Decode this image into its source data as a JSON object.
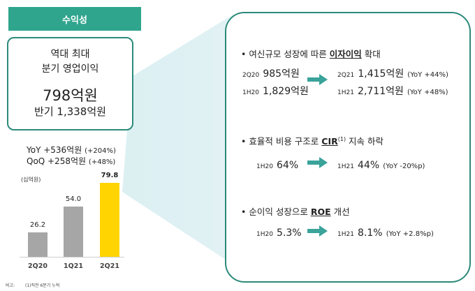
{
  "header": {
    "title": "수익성"
  },
  "kpi": {
    "line1": "역대 최대",
    "line2": "분기 영업이익",
    "value": "798억원",
    "half": "반기 1,338억원"
  },
  "growth": {
    "yoy": "YoY +536억원",
    "yoy_pct": "(+204%)",
    "qoq": "QoQ +258억원",
    "qoq_pct": "(+48%)"
  },
  "chart_data": {
    "type": "bar",
    "unit_label": "(십억원)",
    "categories": [
      "2Q20",
      "1Q21",
      "2Q21"
    ],
    "values": [
      26.2,
      54.0,
      79.8
    ],
    "value_labels": [
      "26.2",
      "54.0",
      "79.8"
    ],
    "colors": [
      "#a6a6a6",
      "#a6a6a6",
      "#ffd400"
    ],
    "ylim": [
      0,
      85
    ]
  },
  "footnote": {
    "label": "비고:",
    "text": "(1)직전 6분기 누적"
  },
  "bullets": [
    {
      "pre": "여신규모 성장에 따른 ",
      "key": "이자이익",
      "post": " 확대",
      "sup": "",
      "rows": [
        {
          "from_period": "2Q20",
          "from_value": "985억원",
          "to_period": "2Q21",
          "to_value": "1,415억원",
          "note": "(YoY +44%)"
        },
        {
          "from_period": "1H20",
          "from_value": "1,829억원",
          "to_period": "1H21",
          "to_value": "2,711억원",
          "note": "(YoY +48%)"
        }
      ]
    },
    {
      "pre": "효율적 비용 구조로 ",
      "key": "CIR",
      "sup": "(1)",
      "post": " 지속 하락",
      "rows": [
        {
          "from_period": "1H20",
          "from_value": "64%",
          "to_period": "1H21",
          "to_value": "44%",
          "note": "(YoY -20%p)"
        }
      ]
    },
    {
      "pre": "순이익 성장으로 ",
      "key": "ROE",
      "sup": "",
      "post": " 개선",
      "rows": [
        {
          "from_period": "1H20",
          "from_value": "5.3%",
          "to_period": "1H21",
          "to_value": "8.1%",
          "note": "(YoY +2.8%p)"
        }
      ]
    }
  ],
  "colors": {
    "accent": "#2fa58d",
    "border": "#2c8a7a",
    "arrow": "#3aa39a",
    "highlight": "#ffd400"
  }
}
